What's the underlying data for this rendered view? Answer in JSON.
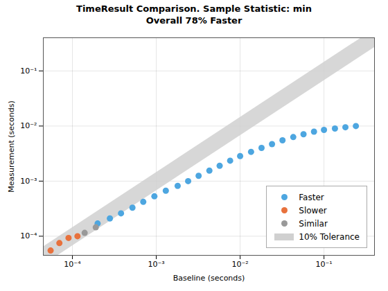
{
  "chart_data": {
    "type": "scatter",
    "title": "TimeResult Comparison. Sample Statistic: min",
    "subtitle": "Overall 78% Faster",
    "xlabel": "Baseline (seconds)",
    "ylabel": "Measurement (seconds)",
    "log": true,
    "xlim": [
      4.5e-05,
      0.4
    ],
    "ylim": [
      4.5e-05,
      0.4
    ],
    "xticks": [
      {
        "value": 0.0001,
        "label": "10⁻⁴"
      },
      {
        "value": 0.001,
        "label": "10⁻³"
      },
      {
        "value": 0.01,
        "label": "10⁻²"
      },
      {
        "value": 0.1,
        "label": "10⁻¹"
      }
    ],
    "yticks": [
      {
        "value": 0.0001,
        "label": "10⁻⁴"
      },
      {
        "value": 0.001,
        "label": "10⁻³"
      },
      {
        "value": 0.01,
        "label": "10⁻²"
      },
      {
        "value": 0.1,
        "label": "10⁻¹"
      }
    ],
    "grid": true,
    "legend": "lower right",
    "series": [
      {
        "name": "Faster",
        "type": "scatter",
        "color": "#4DA6E0",
        "x": [
          0.0002,
          0.00028,
          0.00038,
          0.00052,
          0.0007,
          0.00095,
          0.0013,
          0.0018,
          0.0024,
          0.0032,
          0.0043,
          0.0057,
          0.0076,
          0.01,
          0.0135,
          0.018,
          0.024,
          0.032,
          0.043,
          0.057,
          0.076,
          0.1,
          0.135,
          0.18,
          0.24
        ],
        "values": [
          0.00017,
          0.00021,
          0.00026,
          0.00033,
          0.00042,
          0.00053,
          0.00067,
          0.00082,
          0.001,
          0.00125,
          0.00155,
          0.0019,
          0.00235,
          0.00285,
          0.0034,
          0.004,
          0.0047,
          0.0055,
          0.0063,
          0.0071,
          0.0079,
          0.0085,
          0.009,
          0.0095,
          0.01
        ]
      },
      {
        "name": "Slower",
        "type": "scatter",
        "color": "#E8713C",
        "x": [
          5.5e-05,
          7e-05,
          9e-05,
          0.000115
        ],
        "values": [
          5.5e-05,
          7.5e-05,
          9.3e-05,
          0.0001
        ]
      },
      {
        "name": "Similar",
        "type": "scatter",
        "color": "#999999",
        "x": [
          0.00014,
          0.00019
        ],
        "values": [
          0.000115,
          0.000145
        ]
      },
      {
        "name": "10% Tolerance",
        "type": "line",
        "color": "#D0D0D0",
        "x": [
          4.5e-05,
          0.4
        ],
        "values": [
          4.5e-05,
          0.4
        ]
      }
    ]
  }
}
